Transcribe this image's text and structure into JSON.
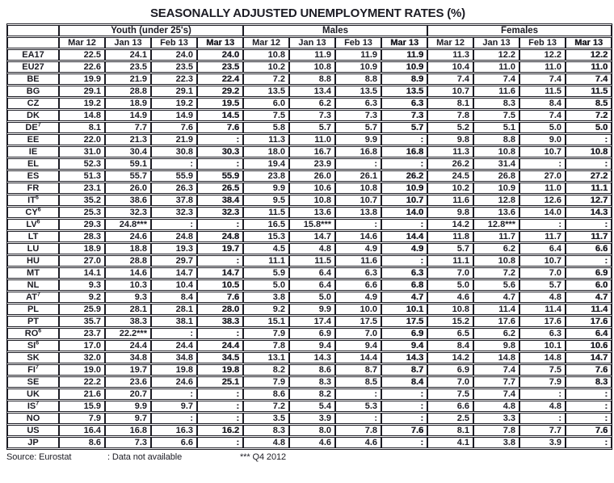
{
  "title": "SEASONALLY ADJUSTED UNEMPLOYMENT RATES (%)",
  "table": {
    "groups": [
      "Youth (under 25's)",
      "Males",
      "Females"
    ],
    "months": [
      "Mar 12",
      "Jan 13",
      "Feb 13",
      "Mar 13"
    ],
    "not_available_symbol": ":",
    "rows": [
      {
        "code": "EA17",
        "sup": "",
        "youth": [
          "22.5",
          "24.1",
          "24.0",
          "24.0"
        ],
        "males": [
          "10.8",
          "11.9",
          "11.9",
          "11.9"
        ],
        "females": [
          "11.3",
          "12.2",
          "12.2",
          "12.2"
        ]
      },
      {
        "code": "EU27",
        "sup": "",
        "youth": [
          "22.6",
          "23.5",
          "23.5",
          "23.5"
        ],
        "males": [
          "10.2",
          "10.8",
          "10.9",
          "10.9"
        ],
        "females": [
          "10.4",
          "11.0",
          "11.0",
          "11.0"
        ]
      },
      {
        "code": "BE",
        "sup": "",
        "youth": [
          "19.9",
          "21.9",
          "22.3",
          "22.4"
        ],
        "males": [
          "7.2",
          "8.8",
          "8.8",
          "8.9"
        ],
        "females": [
          "7.4",
          "7.4",
          "7.4",
          "7.4"
        ]
      },
      {
        "code": "BG",
        "sup": "",
        "youth": [
          "29.1",
          "28.8",
          "29.1",
          "29.2"
        ],
        "males": [
          "13.5",
          "13.4",
          "13.5",
          "13.5"
        ],
        "females": [
          "10.7",
          "11.6",
          "11.5",
          "11.5"
        ]
      },
      {
        "code": "CZ",
        "sup": "",
        "youth": [
          "19.2",
          "18.9",
          "19.2",
          "19.5"
        ],
        "males": [
          "6.0",
          "6.2",
          "6.3",
          "6.3"
        ],
        "females": [
          "8.1",
          "8.3",
          "8.4",
          "8.5"
        ]
      },
      {
        "code": "DK",
        "sup": "",
        "youth": [
          "14.8",
          "14.9",
          "14.9",
          "14.5"
        ],
        "males": [
          "7.5",
          "7.3",
          "7.3",
          "7.3"
        ],
        "females": [
          "7.8",
          "7.5",
          "7.4",
          "7.2"
        ]
      },
      {
        "code": "DE",
        "sup": "7",
        "youth": [
          "8.1",
          "7.7",
          "7.6",
          "7.6"
        ],
        "males": [
          "5.8",
          "5.7",
          "5.7",
          "5.7"
        ],
        "females": [
          "5.2",
          "5.1",
          "5.0",
          "5.0"
        ]
      },
      {
        "code": "EE",
        "sup": "",
        "youth": [
          "22.0",
          "21.3",
          "21.9",
          ":"
        ],
        "males": [
          "11.3",
          "11.0",
          "9.9",
          ":"
        ],
        "females": [
          "9.8",
          "8.8",
          "9.0",
          ":"
        ]
      },
      {
        "code": "IE",
        "sup": "",
        "youth": [
          "31.0",
          "30.4",
          "30.8",
          "30.3"
        ],
        "males": [
          "18.0",
          "16.7",
          "16.8",
          "16.8"
        ],
        "females": [
          "11.3",
          "10.8",
          "10.7",
          "10.8"
        ]
      },
      {
        "code": "EL",
        "sup": "",
        "youth": [
          "52.3",
          "59.1",
          ":",
          ":"
        ],
        "males": [
          "19.4",
          "23.9",
          ":",
          ":"
        ],
        "females": [
          "26.2",
          "31.4",
          ":",
          ":"
        ]
      },
      {
        "code": "ES",
        "sup": "",
        "youth": [
          "51.3",
          "55.7",
          "55.9",
          "55.9"
        ],
        "males": [
          "23.8",
          "26.0",
          "26.1",
          "26.2"
        ],
        "females": [
          "24.5",
          "26.8",
          "27.0",
          "27.2"
        ]
      },
      {
        "code": "FR",
        "sup": "",
        "youth": [
          "23.1",
          "26.0",
          "26.3",
          "26.5"
        ],
        "males": [
          "9.9",
          "10.6",
          "10.8",
          "10.9"
        ],
        "females": [
          "10.2",
          "10.9",
          "11.0",
          "11.1"
        ]
      },
      {
        "code": "IT",
        "sup": "6",
        "youth": [
          "35.2",
          "38.6",
          "37.8",
          "38.4"
        ],
        "males": [
          "9.5",
          "10.8",
          "10.7",
          "10.7"
        ],
        "females": [
          "11.6",
          "12.8",
          "12.6",
          "12.7"
        ]
      },
      {
        "code": "CY",
        "sup": "6",
        "youth": [
          "25.3",
          "32.3",
          "32.3",
          "32.3"
        ],
        "males": [
          "11.5",
          "13.6",
          "13.8",
          "14.0"
        ],
        "females": [
          "9.8",
          "13.6",
          "14.0",
          "14.3"
        ]
      },
      {
        "code": "LV",
        "sup": "6",
        "youth": [
          "29.3",
          "24.8***",
          ":",
          ":"
        ],
        "males": [
          "16.5",
          "15.8***",
          ":",
          ":"
        ],
        "females": [
          "14.2",
          "12.8***",
          ":",
          ":"
        ]
      },
      {
        "code": "LT",
        "sup": "",
        "youth": [
          "28.3",
          "24.6",
          "24.8",
          "24.8"
        ],
        "males": [
          "15.3",
          "14.7",
          "14.6",
          "14.4"
        ],
        "females": [
          "11.8",
          "11.7",
          "11.7",
          "11.7"
        ]
      },
      {
        "code": "LU",
        "sup": "",
        "youth": [
          "18.9",
          "18.8",
          "19.3",
          "19.7"
        ],
        "males": [
          "4.5",
          "4.8",
          "4.9",
          "4.9"
        ],
        "females": [
          "5.7",
          "6.2",
          "6.4",
          "6.6"
        ]
      },
      {
        "code": "HU",
        "sup": "",
        "youth": [
          "27.0",
          "28.8",
          "29.7",
          ":"
        ],
        "males": [
          "11.1",
          "11.5",
          "11.6",
          ":"
        ],
        "females": [
          "11.1",
          "10.8",
          "10.7",
          ":"
        ]
      },
      {
        "code": "MT",
        "sup": "",
        "youth": [
          "14.1",
          "14.6",
          "14.7",
          "14.7"
        ],
        "males": [
          "5.9",
          "6.4",
          "6.3",
          "6.3"
        ],
        "females": [
          "7.0",
          "7.2",
          "7.0",
          "6.9"
        ]
      },
      {
        "code": "NL",
        "sup": "",
        "youth": [
          "9.3",
          "10.3",
          "10.4",
          "10.5"
        ],
        "males": [
          "5.0",
          "6.4",
          "6.6",
          "6.8"
        ],
        "females": [
          "5.0",
          "5.6",
          "5.7",
          "6.0"
        ]
      },
      {
        "code": "AT",
        "sup": "7",
        "youth": [
          "9.2",
          "9.3",
          "8.4",
          "7.6"
        ],
        "males": [
          "3.8",
          "5.0",
          "4.9",
          "4.7"
        ],
        "females": [
          "4.6",
          "4.7",
          "4.8",
          "4.7"
        ]
      },
      {
        "code": "PL",
        "sup": "",
        "youth": [
          "25.9",
          "28.1",
          "28.1",
          "28.0"
        ],
        "males": [
          "9.2",
          "9.9",
          "10.0",
          "10.1"
        ],
        "females": [
          "10.8",
          "11.4",
          "11.4",
          "11.4"
        ]
      },
      {
        "code": "PT",
        "sup": "",
        "youth": [
          "35.7",
          "38.3",
          "38.1",
          "38.3"
        ],
        "males": [
          "15.1",
          "17.4",
          "17.5",
          "17.5"
        ],
        "females": [
          "15.2",
          "17.6",
          "17.6",
          "17.6"
        ]
      },
      {
        "code": "RO",
        "sup": "6",
        "youth": [
          "23.7",
          "22.2***",
          ":",
          ":"
        ],
        "males": [
          "7.9",
          "6.9",
          "7.0",
          "6.9"
        ],
        "females": [
          "6.5",
          "6.2",
          "6.3",
          "6.4"
        ]
      },
      {
        "code": "SI",
        "sup": "6",
        "youth": [
          "17.0",
          "24.4",
          "24.4",
          "24.4"
        ],
        "males": [
          "7.8",
          "9.4",
          "9.4",
          "9.4"
        ],
        "females": [
          "8.4",
          "9.8",
          "10.1",
          "10.6"
        ]
      },
      {
        "code": "SK",
        "sup": "",
        "youth": [
          "32.0",
          "34.8",
          "34.8",
          "34.5"
        ],
        "males": [
          "13.1",
          "14.3",
          "14.4",
          "14.3"
        ],
        "females": [
          "14.2",
          "14.8",
          "14.8",
          "14.7"
        ]
      },
      {
        "code": "FI",
        "sup": "7",
        "youth": [
          "19.0",
          "19.7",
          "19.8",
          "19.8"
        ],
        "males": [
          "8.2",
          "8.6",
          "8.7",
          "8.7"
        ],
        "females": [
          "6.9",
          "7.4",
          "7.5",
          "7.6"
        ]
      },
      {
        "code": "SE",
        "sup": "",
        "youth": [
          "22.2",
          "23.6",
          "24.6",
          "25.1"
        ],
        "males": [
          "7.9",
          "8.3",
          "8.5",
          "8.4"
        ],
        "females": [
          "7.0",
          "7.7",
          "7.9",
          "8.3"
        ]
      },
      {
        "code": "UK",
        "sup": "",
        "youth": [
          "21.6",
          "20.7",
          ":",
          ":"
        ],
        "males": [
          "8.6",
          "8.2",
          ":",
          ":"
        ],
        "females": [
          "7.5",
          "7.4",
          ":",
          ":"
        ]
      },
      {
        "code": "IS",
        "sup": "7",
        "youth": [
          "15.9",
          "9.9",
          "9.7",
          ":"
        ],
        "males": [
          "7.2",
          "5.4",
          "5.3",
          ":"
        ],
        "females": [
          "6.6",
          "4.8",
          "4.8",
          ":"
        ]
      },
      {
        "code": "NO",
        "sup": "",
        "youth": [
          "7.9",
          "9.7",
          ":",
          ":"
        ],
        "males": [
          "3.5",
          "3.9",
          ":",
          ":"
        ],
        "females": [
          "2.5",
          "3.3",
          ":",
          ":"
        ]
      },
      {
        "code": "US",
        "sup": "",
        "youth": [
          "16.4",
          "16.8",
          "16.3",
          "16.2"
        ],
        "males": [
          "8.3",
          "8.0",
          "7.8",
          "7.6"
        ],
        "females": [
          "8.1",
          "7.8",
          "7.7",
          "7.6"
        ]
      },
      {
        "code": "JP",
        "sup": "",
        "youth": [
          "8.6",
          "7.3",
          "6.6",
          ":"
        ],
        "males": [
          "4.8",
          "4.6",
          "4.6",
          ":"
        ],
        "females": [
          "4.1",
          "3.8",
          "3.9",
          ":"
        ]
      }
    ]
  },
  "footer": {
    "source": "Source: Eurostat",
    "not_available": ": Data not available",
    "q4_note": "*** Q4 2012"
  }
}
